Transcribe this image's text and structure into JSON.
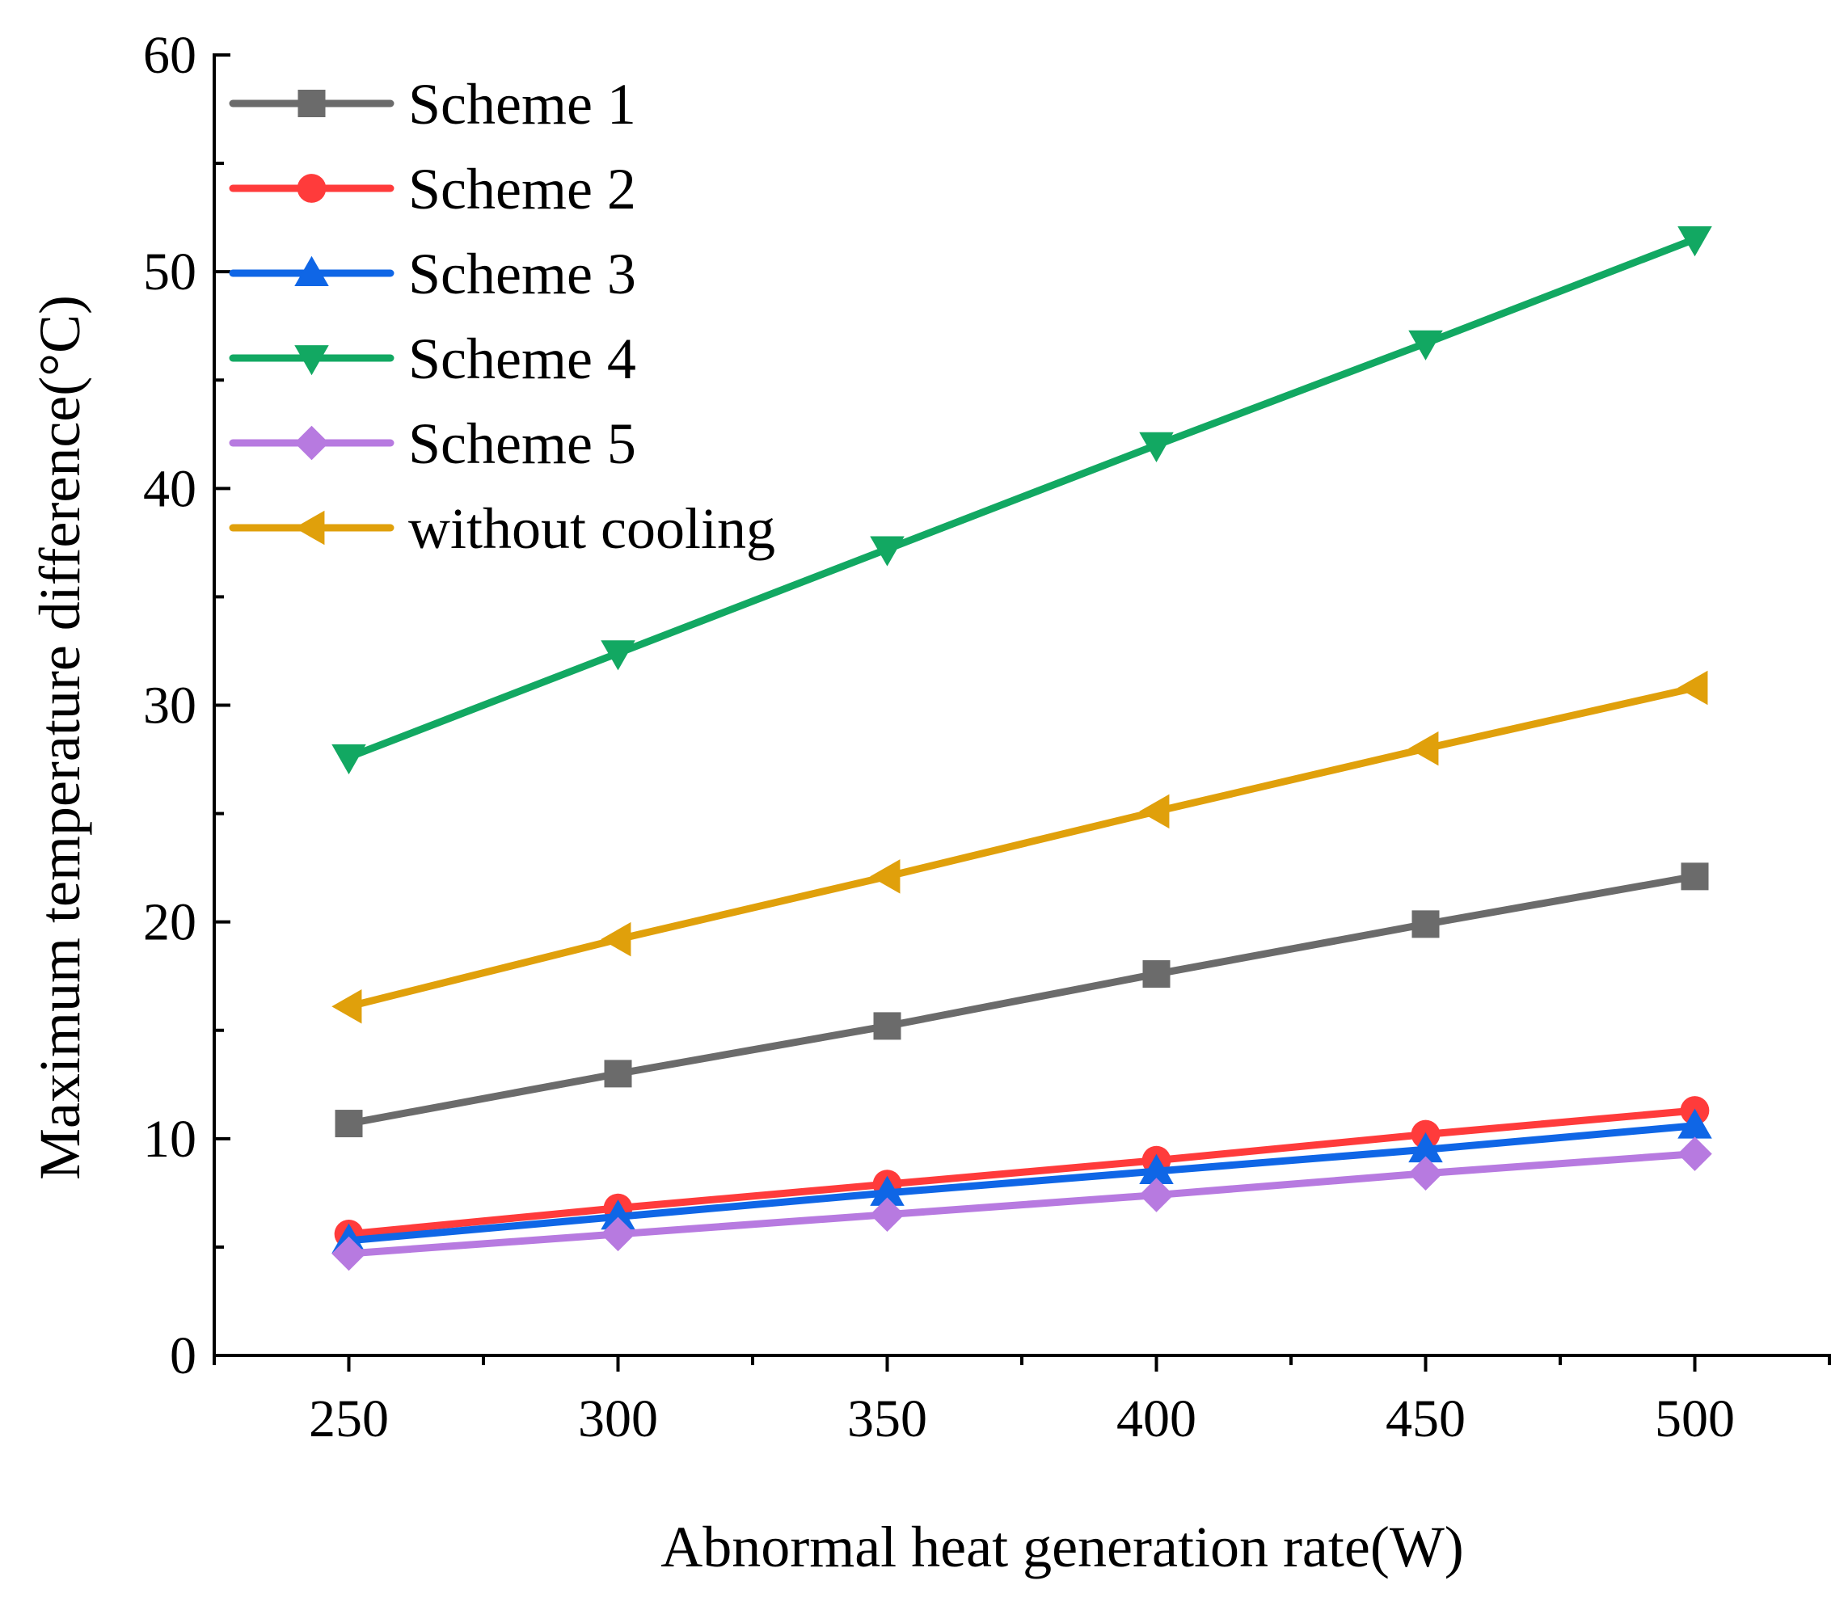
{
  "chart_data": {
    "type": "line",
    "title": "",
    "xlabel": "Abnormal heat generation rate(W)",
    "ylabel": "Maximum temperature difference(°C)",
    "xlim": [
      225,
      525
    ],
    "ylim": [
      0,
      60
    ],
    "x": [
      250,
      300,
      350,
      400,
      450,
      500
    ],
    "xticks": [
      "250",
      "300",
      "350",
      "400",
      "450",
      "500"
    ],
    "yticks": [
      "0",
      "10",
      "20",
      "30",
      "40",
      "50",
      "60"
    ],
    "grid": false,
    "legend_position": "top-left",
    "series": [
      {
        "name": "Scheme 1",
        "color": "#6b6b6b",
        "marker": "square",
        "values": [
          10.7,
          13.0,
          15.2,
          17.6,
          19.9,
          22.1
        ]
      },
      {
        "name": "Scheme 2",
        "color": "#ff3b3b",
        "marker": "circle",
        "values": [
          5.6,
          6.8,
          7.9,
          9.0,
          10.2,
          11.3
        ]
      },
      {
        "name": "Scheme 3",
        "color": "#0f66e6",
        "marker": "triangle-up",
        "values": [
          5.3,
          6.4,
          7.5,
          8.5,
          9.5,
          10.6
        ]
      },
      {
        "name": "Scheme 4",
        "color": "#12a862",
        "marker": "triangle-down",
        "values": [
          27.6,
          32.4,
          37.2,
          42.0,
          46.7,
          51.5
        ]
      },
      {
        "name": "Scheme 5",
        "color": "#b77ae0",
        "marker": "diamond",
        "values": [
          4.7,
          5.6,
          6.5,
          7.4,
          8.4,
          9.3
        ]
      },
      {
        "name": "without cooling",
        "color": "#e0a00b",
        "marker": "triangle-left",
        "values": [
          16.1,
          19.2,
          22.1,
          25.1,
          28.0,
          30.8
        ]
      }
    ]
  }
}
